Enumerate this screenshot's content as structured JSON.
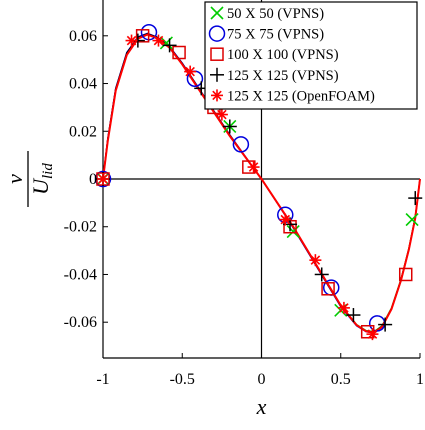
{
  "chart_data": {
    "type": "line",
    "title": "",
    "xlabel": "x",
    "ylabel_num": "v",
    "ylabel_den": "U",
    "ylabel_den_sub": "lid",
    "xlim": [
      -1,
      1
    ],
    "ylim": [
      -0.075,
      0.075
    ],
    "xticks": [
      -1,
      -0.5,
      0,
      0.5,
      1
    ],
    "xtick_labels": [
      "-1",
      "-0.5",
      "0",
      "0.5",
      "1"
    ],
    "yticks": [
      -0.06,
      -0.04,
      -0.02,
      0,
      0.02,
      0.04,
      0.06
    ],
    "ytick_labels": [
      "-0.06",
      "-0.04",
      "-0.02",
      "0",
      "0.02",
      "0.04",
      "0.06"
    ],
    "grid": false,
    "legend_position": "top-right",
    "series": [
      {
        "name": "50 X 50 (VPNS)",
        "color": "#00cc00",
        "marker": "x",
        "x": [
          -1,
          -0.6,
          -0.2,
          0.2,
          0.5,
          0.95
        ],
        "y": [
          0,
          0.057,
          0.022,
          -0.022,
          -0.055,
          -0.017
        ],
        "curve_x": [
          -1,
          -0.97,
          -0.92,
          -0.85,
          -0.78,
          -0.72,
          -0.66,
          -0.58,
          -0.5,
          -0.4,
          -0.3,
          -0.2,
          -0.1,
          0,
          0.1,
          0.2,
          0.3,
          0.4,
          0.5,
          0.6,
          0.66,
          0.71,
          0.76,
          0.82,
          0.88,
          0.93,
          0.97,
          1
        ],
        "curve_y": [
          0,
          0.016,
          0.037,
          0.052,
          0.059,
          0.0605,
          0.0592,
          0.055,
          0.048,
          0.038,
          0.028,
          0.018,
          0.009,
          0,
          -0.01,
          -0.02,
          -0.031,
          -0.042,
          -0.053,
          -0.061,
          -0.0635,
          -0.064,
          -0.0615,
          -0.054,
          -0.042,
          -0.029,
          -0.016,
          0
        ]
      },
      {
        "name": "75 X 75 (VPNS)",
        "color": "#0000dd",
        "marker": "circle",
        "x": [
          -1,
          -0.71,
          -0.42,
          -0.13,
          0.15,
          0.44,
          0.73
        ],
        "y": [
          0,
          0.0615,
          0.042,
          0.0145,
          -0.015,
          -0.0455,
          -0.0605
        ],
        "curve_x": [
          -1,
          -0.97,
          -0.92,
          -0.85,
          -0.78,
          -0.72,
          -0.66,
          -0.58,
          -0.5,
          -0.4,
          -0.3,
          -0.2,
          -0.1,
          0,
          0.1,
          0.2,
          0.3,
          0.4,
          0.5,
          0.6,
          0.66,
          0.71,
          0.76,
          0.82,
          0.88,
          0.93,
          0.97,
          1
        ],
        "curve_y": [
          0,
          0.017,
          0.038,
          0.053,
          0.0595,
          0.061,
          0.0595,
          0.0555,
          0.0485,
          0.0385,
          0.0285,
          0.0185,
          0.0092,
          0,
          -0.0102,
          -0.0205,
          -0.0315,
          -0.0425,
          -0.0535,
          -0.0615,
          -0.064,
          -0.0645,
          -0.062,
          -0.0545,
          -0.0425,
          -0.0295,
          -0.0165,
          0
        ]
      },
      {
        "name": "100 X 100 (VPNS)",
        "color": "#dd0000",
        "marker": "square",
        "x": [
          -1,
          -0.75,
          -0.52,
          -0.3,
          -0.08,
          0.18,
          0.42,
          0.67,
          0.91
        ],
        "y": [
          0,
          0.06,
          0.053,
          0.03,
          0.005,
          -0.02,
          -0.046,
          -0.064,
          -0.04
        ],
        "curve_x": [
          -1,
          -0.97,
          -0.92,
          -0.85,
          -0.78,
          -0.72,
          -0.66,
          -0.58,
          -0.5,
          -0.4,
          -0.3,
          -0.2,
          -0.1,
          0,
          0.1,
          0.2,
          0.3,
          0.4,
          0.5,
          0.6,
          0.66,
          0.71,
          0.76,
          0.82,
          0.88,
          0.93,
          0.97,
          1
        ],
        "curve_y": [
          0,
          0.0165,
          0.0375,
          0.0525,
          0.059,
          0.0607,
          0.0593,
          0.0552,
          0.0482,
          0.0382,
          0.0282,
          0.0182,
          0.009,
          0,
          -0.0101,
          -0.0202,
          -0.0312,
          -0.0422,
          -0.0532,
          -0.0612,
          -0.0637,
          -0.0642,
          -0.0617,
          -0.0542,
          -0.0422,
          -0.0292,
          -0.0162,
          0
        ]
      },
      {
        "name": "125 X 125 (VPNS)",
        "color": "#000000",
        "marker": "plus",
        "x": [
          -1,
          -0.78,
          -0.58,
          -0.38,
          -0.2,
          0.18,
          0.38,
          0.58,
          0.78,
          0.97
        ],
        "y": [
          0,
          0.058,
          0.056,
          0.038,
          0.022,
          -0.019,
          -0.04,
          -0.057,
          -0.061,
          -0.008
        ],
        "curve_x": [
          -1,
          -0.97,
          -0.92,
          -0.85,
          -0.78,
          -0.72,
          -0.66,
          -0.58,
          -0.5,
          -0.4,
          -0.3,
          -0.2,
          -0.1,
          0,
          0.1,
          0.2,
          0.3,
          0.4,
          0.5,
          0.6,
          0.66,
          0.71,
          0.76,
          0.82,
          0.88,
          0.93,
          0.97,
          1
        ],
        "curve_y": [
          0,
          0.0168,
          0.0378,
          0.0528,
          0.0593,
          0.0609,
          0.0594,
          0.0553,
          0.0484,
          0.0384,
          0.0284,
          0.0184,
          0.0091,
          0,
          -0.0101,
          -0.0203,
          -0.0313,
          -0.0423,
          -0.0533,
          -0.0613,
          -0.0638,
          -0.0643,
          -0.0618,
          -0.0543,
          -0.0423,
          -0.0293,
          -0.0163,
          0
        ]
      },
      {
        "name": "125 X 125 (OpenFOAM)",
        "color": "#ff0000",
        "marker": "asterisk",
        "x": [
          -1,
          -0.82,
          -0.65,
          -0.45,
          -0.25,
          -0.05,
          0.15,
          0.34,
          0.52,
          0.7
        ],
        "y": [
          0,
          0.058,
          0.058,
          0.045,
          0.027,
          0.005,
          -0.017,
          -0.034,
          -0.054,
          -0.065
        ],
        "curve_x": [
          -1,
          -0.97,
          -0.92,
          -0.85,
          -0.78,
          -0.72,
          -0.66,
          -0.58,
          -0.5,
          -0.4,
          -0.3,
          -0.2,
          -0.1,
          0,
          0.1,
          0.2,
          0.3,
          0.4,
          0.5,
          0.6,
          0.66,
          0.71,
          0.76,
          0.82,
          0.88,
          0.93,
          0.97,
          1
        ],
        "curve_y": [
          0,
          0.016,
          0.037,
          0.052,
          0.0588,
          0.0605,
          0.059,
          0.055,
          0.048,
          0.038,
          0.028,
          0.018,
          0.009,
          0,
          -0.01,
          -0.02,
          -0.031,
          -0.042,
          -0.053,
          -0.0612,
          -0.0638,
          -0.0645,
          -0.062,
          -0.0545,
          -0.0425,
          -0.0295,
          -0.0165,
          0
        ]
      }
    ]
  }
}
